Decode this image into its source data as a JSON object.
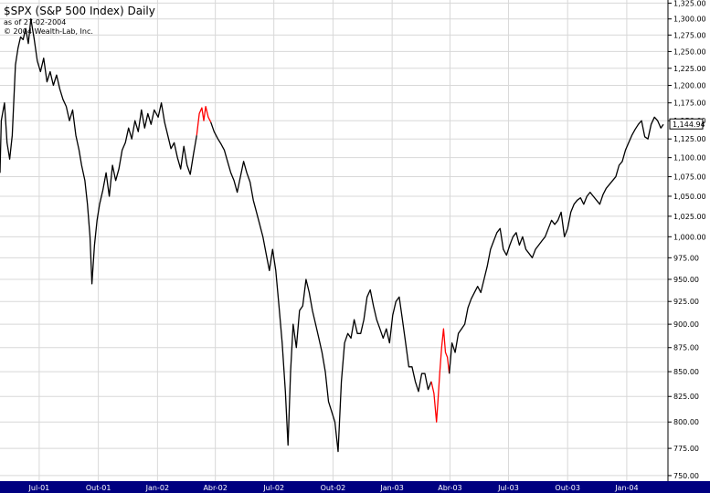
{
  "header": {
    "title": "$SPX (S&P 500 Index) Daily",
    "as_of": "as of 27-02-2004",
    "copyright": "© 2004 Wealth-Lab, Inc."
  },
  "colors": {
    "price_line": "#000000",
    "highlight_line": "#ff0000",
    "grid": "#d8d8d8",
    "date_bar": "#000080",
    "background": "#ffffff"
  },
  "chart_data": {
    "type": "line",
    "title": "$SPX (S&P 500 Index) Daily",
    "xlabel": "",
    "ylabel": "",
    "grid": true,
    "ylim": [
      745,
      1330
    ],
    "y_scale": "log",
    "y_ticks": [
      1325,
      1300,
      1275,
      1250,
      1225,
      1200,
      1175,
      1150,
      1125,
      1100,
      1075,
      1050,
      1025,
      1000,
      975,
      950,
      925,
      900,
      875,
      850,
      825,
      800,
      775,
      750
    ],
    "y_tick_labels": [
      "1,325.00",
      "1,300.00",
      "1,275.00",
      "1,250.00",
      "1,225.00",
      "1,200.00",
      "1,175.00",
      "1,150.00",
      "1,125.00",
      "1,100.00",
      "1,075.00",
      "1,050.00",
      "1,025.00",
      "1,000.00",
      "975.00",
      "950.00",
      "925.00",
      "900.00",
      "875.00",
      "850.00",
      "825.00",
      "800.00",
      "775.00",
      "750.00"
    ],
    "x_range": [
      "2001-05-01",
      "2004-02-27"
    ],
    "x_ticks": [
      {
        "date": "2001-07-01",
        "label": "Jul-01"
      },
      {
        "date": "2001-10-01",
        "label": "Out-01"
      },
      {
        "date": "2002-01-01",
        "label": "Jan-02"
      },
      {
        "date": "2002-04-01",
        "label": "Abr-02"
      },
      {
        "date": "2002-07-01",
        "label": "Jul-02"
      },
      {
        "date": "2002-10-01",
        "label": "Out-02"
      },
      {
        "date": "2003-01-01",
        "label": "Jan-03"
      },
      {
        "date": "2003-04-01",
        "label": "Abr-03"
      },
      {
        "date": "2003-07-01",
        "label": "Jul-03"
      },
      {
        "date": "2003-10-01",
        "label": "Out-03"
      },
      {
        "date": "2004-01-01",
        "label": "Jan-04"
      }
    ],
    "last_value": 1144.94,
    "last_label": "1,144.94",
    "series": [
      {
        "color": "#000000",
        "points": [
          [
            "2001-05-01",
            1080
          ],
          [
            "2001-05-03",
            1150
          ],
          [
            "2001-05-08",
            1175
          ],
          [
            "2001-05-12",
            1120
          ],
          [
            "2001-05-16",
            1098
          ],
          [
            "2001-05-20",
            1130
          ],
          [
            "2001-05-25",
            1230
          ],
          [
            "2001-05-29",
            1255
          ],
          [
            "2001-06-02",
            1272
          ],
          [
            "2001-06-06",
            1268
          ],
          [
            "2001-06-10",
            1285
          ],
          [
            "2001-06-14",
            1262
          ],
          [
            "2001-06-18",
            1300
          ],
          [
            "2001-06-23",
            1270
          ],
          [
            "2001-06-28",
            1236
          ],
          [
            "2001-07-03",
            1220
          ],
          [
            "2001-07-08",
            1240
          ],
          [
            "2001-07-13",
            1205
          ],
          [
            "2001-07-18",
            1220
          ],
          [
            "2001-07-23",
            1200
          ],
          [
            "2001-07-28",
            1215
          ],
          [
            "2001-08-02",
            1195
          ],
          [
            "2001-08-07",
            1180
          ],
          [
            "2001-08-12",
            1170
          ],
          [
            "2001-08-17",
            1150
          ],
          [
            "2001-08-22",
            1165
          ],
          [
            "2001-08-27",
            1130
          ],
          [
            "2001-09-01",
            1110
          ],
          [
            "2001-09-05",
            1090
          ],
          [
            "2001-09-10",
            1070
          ],
          [
            "2001-09-14",
            1040
          ],
          [
            "2001-09-18",
            1000
          ],
          [
            "2001-09-21",
            945
          ],
          [
            "2001-09-25",
            990
          ],
          [
            "2001-09-29",
            1020
          ],
          [
            "2001-10-03",
            1040
          ],
          [
            "2001-10-08",
            1058
          ],
          [
            "2001-10-13",
            1080
          ],
          [
            "2001-10-18",
            1050
          ],
          [
            "2001-10-23",
            1090
          ],
          [
            "2001-10-28",
            1070
          ],
          [
            "2001-11-02",
            1085
          ],
          [
            "2001-11-07",
            1110
          ],
          [
            "2001-11-12",
            1120
          ],
          [
            "2001-11-17",
            1140
          ],
          [
            "2001-11-22",
            1125
          ],
          [
            "2001-11-27",
            1150
          ],
          [
            "2001-12-02",
            1135
          ],
          [
            "2001-12-07",
            1165
          ],
          [
            "2001-12-12",
            1140
          ],
          [
            "2001-12-17",
            1160
          ],
          [
            "2001-12-22",
            1145
          ],
          [
            "2001-12-27",
            1165
          ],
          [
            "2002-01-02",
            1155
          ],
          [
            "2002-01-07",
            1175
          ],
          [
            "2002-01-12",
            1148
          ],
          [
            "2002-01-17",
            1130
          ],
          [
            "2002-01-22",
            1112
          ],
          [
            "2002-01-27",
            1120
          ],
          [
            "2002-02-01",
            1100
          ],
          [
            "2002-02-06",
            1085
          ],
          [
            "2002-02-11",
            1115
          ],
          [
            "2002-02-16",
            1090
          ],
          [
            "2002-02-21",
            1078
          ],
          [
            "2002-02-26",
            1105
          ],
          [
            "2002-03-03",
            1130
          ]
        ]
      },
      {
        "color": "#ff0000",
        "points": [
          [
            "2002-03-03",
            1130
          ],
          [
            "2002-03-07",
            1160
          ],
          [
            "2002-03-11",
            1168
          ],
          [
            "2002-03-14",
            1150
          ],
          [
            "2002-03-17",
            1170
          ],
          [
            "2002-03-21",
            1155
          ],
          [
            "2002-03-25",
            1148
          ]
        ]
      },
      {
        "color": "#000000",
        "points": [
          [
            "2002-03-25",
            1148
          ],
          [
            "2002-03-30",
            1135
          ],
          [
            "2002-04-05",
            1125
          ],
          [
            "2002-04-10",
            1118
          ],
          [
            "2002-04-15",
            1110
          ],
          [
            "2002-04-20",
            1095
          ],
          [
            "2002-04-25",
            1080
          ],
          [
            "2002-04-30",
            1070
          ],
          [
            "2002-05-05",
            1055
          ],
          [
            "2002-05-10",
            1075
          ],
          [
            "2002-05-15",
            1095
          ],
          [
            "2002-05-20",
            1080
          ],
          [
            "2002-05-25",
            1068
          ],
          [
            "2002-05-30",
            1045
          ],
          [
            "2002-06-04",
            1030
          ],
          [
            "2002-06-09",
            1015
          ],
          [
            "2002-06-14",
            1000
          ],
          [
            "2002-06-19",
            980
          ],
          [
            "2002-06-24",
            960
          ],
          [
            "2002-06-29",
            985
          ],
          [
            "2002-07-04",
            960
          ],
          [
            "2002-07-09",
            920
          ],
          [
            "2002-07-14",
            880
          ],
          [
            "2002-07-19",
            830
          ],
          [
            "2002-07-23",
            778
          ],
          [
            "2002-07-27",
            850
          ],
          [
            "2002-07-31",
            900
          ],
          [
            "2002-08-05",
            875
          ],
          [
            "2002-08-10",
            915
          ],
          [
            "2002-08-15",
            920
          ],
          [
            "2002-08-20",
            950
          ],
          [
            "2002-08-25",
            935
          ],
          [
            "2002-08-30",
            915
          ],
          [
            "2002-09-04",
            900
          ],
          [
            "2002-09-09",
            885
          ],
          [
            "2002-09-14",
            870
          ],
          [
            "2002-09-19",
            850
          ],
          [
            "2002-09-24",
            820
          ],
          [
            "2002-09-29",
            810
          ],
          [
            "2002-10-04",
            800
          ],
          [
            "2002-10-09",
            772
          ],
          [
            "2002-10-14",
            840
          ],
          [
            "2002-10-19",
            880
          ],
          [
            "2002-10-24",
            890
          ],
          [
            "2002-10-29",
            885
          ],
          [
            "2002-11-03",
            905
          ],
          [
            "2002-11-08",
            890
          ],
          [
            "2002-11-13",
            890
          ],
          [
            "2002-11-18",
            905
          ],
          [
            "2002-11-23",
            930
          ],
          [
            "2002-11-28",
            938
          ],
          [
            "2002-12-03",
            920
          ],
          [
            "2002-12-08",
            905
          ],
          [
            "2002-12-13",
            895
          ],
          [
            "2002-12-18",
            885
          ],
          [
            "2002-12-23",
            895
          ],
          [
            "2002-12-28",
            880
          ],
          [
            "2003-01-02",
            910
          ],
          [
            "2003-01-07",
            925
          ],
          [
            "2003-01-12",
            930
          ],
          [
            "2003-01-17",
            905
          ],
          [
            "2003-01-22",
            880
          ],
          [
            "2003-01-27",
            855
          ],
          [
            "2003-02-01",
            855
          ],
          [
            "2003-02-06",
            840
          ],
          [
            "2003-02-11",
            830
          ],
          [
            "2003-02-16",
            848
          ],
          [
            "2003-02-21",
            848
          ],
          [
            "2003-02-26",
            832
          ],
          [
            "2003-03-03",
            840
          ]
        ]
      },
      {
        "color": "#ff0000",
        "points": [
          [
            "2003-03-03",
            840
          ],
          [
            "2003-03-07",
            828
          ],
          [
            "2003-03-11",
            800
          ],
          [
            "2003-03-13",
            818
          ],
          [
            "2003-03-16",
            848
          ],
          [
            "2003-03-19",
            875
          ],
          [
            "2003-03-22",
            895
          ],
          [
            "2003-03-25",
            870
          ],
          [
            "2003-03-28",
            865
          ],
          [
            "2003-03-31",
            848
          ]
        ]
      },
      {
        "color": "#000000",
        "points": [
          [
            "2003-03-31",
            848
          ],
          [
            "2003-04-04",
            880
          ],
          [
            "2003-04-09",
            870
          ],
          [
            "2003-04-14",
            890
          ],
          [
            "2003-04-19",
            895
          ],
          [
            "2003-04-24",
            900
          ],
          [
            "2003-04-29",
            918
          ],
          [
            "2003-05-04",
            928
          ],
          [
            "2003-05-09",
            935
          ],
          [
            "2003-05-14",
            942
          ],
          [
            "2003-05-19",
            935
          ],
          [
            "2003-05-24",
            950
          ],
          [
            "2003-05-29",
            965
          ],
          [
            "2003-06-03",
            985
          ],
          [
            "2003-06-08",
            995
          ],
          [
            "2003-06-13",
            1005
          ],
          [
            "2003-06-18",
            1010
          ],
          [
            "2003-06-23",
            985
          ],
          [
            "2003-06-28",
            978
          ],
          [
            "2003-07-03",
            990
          ],
          [
            "2003-07-08",
            1000
          ],
          [
            "2003-07-13",
            1005
          ],
          [
            "2003-07-18",
            990
          ],
          [
            "2003-07-23",
            1000
          ],
          [
            "2003-07-28",
            985
          ],
          [
            "2003-08-02",
            980
          ],
          [
            "2003-08-07",
            975
          ],
          [
            "2003-08-12",
            985
          ],
          [
            "2003-08-17",
            990
          ],
          [
            "2003-08-22",
            995
          ],
          [
            "2003-08-27",
            1000
          ],
          [
            "2003-09-01",
            1010
          ],
          [
            "2003-09-06",
            1020
          ],
          [
            "2003-09-11",
            1015
          ],
          [
            "2003-09-16",
            1020
          ],
          [
            "2003-09-21",
            1030
          ],
          [
            "2003-09-26",
            1000
          ],
          [
            "2003-10-01",
            1010
          ],
          [
            "2003-10-06",
            1030
          ],
          [
            "2003-10-11",
            1040
          ],
          [
            "2003-10-16",
            1045
          ],
          [
            "2003-10-21",
            1048
          ],
          [
            "2003-10-26",
            1040
          ],
          [
            "2003-10-31",
            1050
          ],
          [
            "2003-11-05",
            1055
          ],
          [
            "2003-11-10",
            1050
          ],
          [
            "2003-11-15",
            1045
          ],
          [
            "2003-11-20",
            1040
          ],
          [
            "2003-11-25",
            1052
          ],
          [
            "2003-11-30",
            1060
          ],
          [
            "2003-12-05",
            1065
          ],
          [
            "2003-12-10",
            1070
          ],
          [
            "2003-12-15",
            1075
          ],
          [
            "2003-12-20",
            1090
          ],
          [
            "2003-12-25",
            1095
          ],
          [
            "2003-12-30",
            1110
          ],
          [
            "2004-01-04",
            1120
          ],
          [
            "2004-01-09",
            1130
          ],
          [
            "2004-01-14",
            1138
          ],
          [
            "2004-01-19",
            1145
          ],
          [
            "2004-01-24",
            1150
          ],
          [
            "2004-01-29",
            1128
          ],
          [
            "2004-02-03",
            1125
          ],
          [
            "2004-02-08",
            1145
          ],
          [
            "2004-02-13",
            1155
          ],
          [
            "2004-02-18",
            1150
          ],
          [
            "2004-02-23",
            1140
          ],
          [
            "2004-02-27",
            1144.94
          ]
        ]
      }
    ]
  }
}
